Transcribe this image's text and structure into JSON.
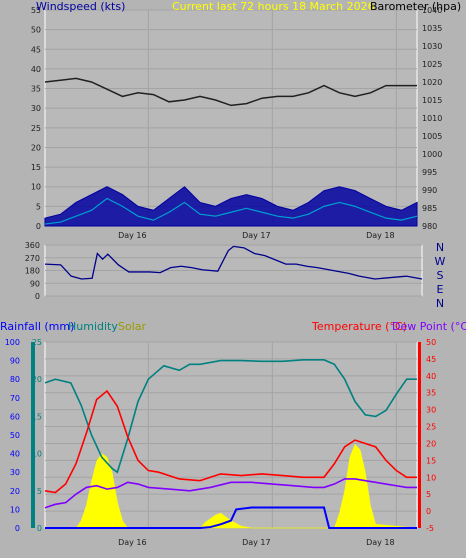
{
  "colors": {
    "bg": "#b4b4b4",
    "plot_bg": "#b9b9b9",
    "grid": "#a4a4a4",
    "frame": "#ffffff",
    "wind_label": "#0000a0",
    "title": "#ffff00",
    "baro_label": "#000000",
    "rain_label": "#0000ff",
    "humidity_label": "#008080",
    "solar_label": "#9a9a00",
    "temp_label": "#ff0000",
    "dew_label": "#8000ff",
    "axis_num": "#202020"
  },
  "chart_data": [
    {
      "id": "wind-barometer",
      "type": "line",
      "title": "Current last 72 hours 18 March 2026",
      "ylabel_left": "Windspeed (kts)",
      "ylabel_right": "Barometer (hpa)",
      "ylim_left": [
        0,
        55
      ],
      "yticks_left": [
        0,
        5,
        10,
        15,
        20,
        25,
        30,
        35,
        40,
        45,
        50,
        55
      ],
      "ylim_right": [
        980,
        1040
      ],
      "yticks_right": [
        980,
        985,
        990,
        995,
        1000,
        1005,
        1010,
        1015,
        1020,
        1025,
        1030,
        1035,
        1040
      ],
      "xlim": [
        0,
        72
      ],
      "xticks": [
        {
          "x": 20,
          "label": "Day 16"
        },
        {
          "x": 44,
          "label": "Day 17"
        },
        {
          "x": 68,
          "label": "Day 18"
        }
      ],
      "grid": true,
      "series": [
        {
          "key": "barometer",
          "axis": "right",
          "color": "#202020",
          "style": "line",
          "x": [
            0,
            3,
            6,
            9,
            12,
            15,
            18,
            21,
            24,
            27,
            30,
            33,
            36,
            39,
            42,
            45,
            48,
            51,
            54,
            57,
            60,
            63,
            66,
            69,
            72
          ],
          "y": [
            1020,
            1020.5,
            1021,
            1020,
            1018,
            1016,
            1017,
            1016.5,
            1014.5,
            1015,
            1016,
            1015,
            1013.5,
            1014,
            1015.5,
            1016,
            1016,
            1017,
            1019,
            1017,
            1016,
            1017,
            1019,
            1019,
            1019
          ]
        },
        {
          "key": "wind_gust",
          "axis": "left",
          "color": "#0000a0",
          "style": "band",
          "x": [
            0,
            3,
            6,
            9,
            12,
            15,
            18,
            21,
            24,
            27,
            30,
            33,
            36,
            39,
            42,
            45,
            48,
            51,
            54,
            57,
            60,
            63,
            66,
            69,
            72
          ],
          "y": [
            2,
            3,
            6,
            8,
            10,
            8,
            5,
            4,
            7,
            10,
            6,
            5,
            7,
            8,
            7,
            5,
            4,
            6,
            9,
            10,
            9,
            7,
            5,
            4,
            6
          ]
        },
        {
          "key": "wind_avg",
          "axis": "left",
          "color": "#00a0d0",
          "style": "line",
          "x": [
            0,
            3,
            6,
            9,
            12,
            15,
            18,
            21,
            24,
            27,
            30,
            33,
            36,
            39,
            42,
            45,
            48,
            51,
            54,
            57,
            60,
            63,
            66,
            69,
            72
          ],
          "y": [
            0.5,
            1,
            2.5,
            4,
            7,
            5,
            2.5,
            1.5,
            3.5,
            6,
            3,
            2.5,
            3.5,
            4.5,
            3.5,
            2.5,
            2,
            3,
            5,
            6,
            5,
            3.5,
            2,
            1.5,
            2.5
          ]
        }
      ]
    },
    {
      "id": "wind-direction",
      "type": "line",
      "yticks": [
        0,
        90,
        180,
        270,
        360
      ],
      "ylim": [
        0,
        360
      ],
      "compass": [
        "N",
        "W",
        "S",
        "E",
        "N"
      ],
      "xlim": [
        0,
        72
      ],
      "grid": true,
      "series": [
        {
          "key": "direction",
          "color": "#00008b",
          "x": [
            0,
            3,
            5,
            7,
            9,
            10,
            11,
            12,
            14,
            16,
            20,
            22,
            24,
            26,
            28,
            30,
            33,
            35,
            36,
            38,
            40,
            42,
            44,
            46,
            48,
            50,
            52,
            55,
            58,
            60,
            63,
            66,
            69,
            72
          ],
          "y": [
            225,
            220,
            140,
            120,
            125,
            300,
            260,
            295,
            220,
            170,
            170,
            165,
            200,
            210,
            200,
            185,
            175,
            320,
            350,
            340,
            300,
            285,
            255,
            225,
            225,
            210,
            200,
            180,
            160,
            140,
            120,
            130,
            140,
            120
          ]
        }
      ]
    },
    {
      "id": "temperature-humidity-rain",
      "type": "line",
      "labels": {
        "rainfall": "Rainfall (mm)",
        "humidity": "Humidity",
        "solar": "Solar",
        "temperature": "Temperature (°C)",
        "dew_point": "Dew Point (°C)"
      },
      "ylim_rainfall": [
        0,
        100
      ],
      "yticks_rainfall": [
        0,
        10,
        20,
        30,
        40,
        50,
        60,
        70,
        80,
        90,
        100
      ],
      "ylim_humidity": [
        0,
        25
      ],
      "yticks_humidity": [
        0,
        5,
        10,
        15,
        20,
        25
      ],
      "ylim_temperature": [
        -5,
        50
      ],
      "yticks_temperature": [
        -5,
        0,
        5,
        10,
        15,
        20,
        25,
        30,
        35,
        40,
        45,
        50
      ],
      "xlim": [
        0,
        72
      ],
      "xticks": [
        {
          "x": 20,
          "label": "Day 16"
        },
        {
          "x": 44,
          "label": "Day 17"
        },
        {
          "x": 68,
          "label": "Day 18"
        }
      ],
      "grid": true,
      "series": [
        {
          "key": "solar",
          "color": "#ffff00",
          "style": "area",
          "scale": "rainfall",
          "x": [
            0,
            6,
            7,
            8,
            9,
            10,
            11,
            12,
            13,
            14,
            15,
            16,
            24,
            30,
            31,
            32,
            33,
            34,
            35,
            36,
            38,
            40,
            46,
            56,
            57,
            58,
            59,
            60,
            61,
            62,
            63,
            64,
            72
          ],
          "y": [
            0,
            0,
            4,
            12,
            25,
            36,
            40,
            38,
            30,
            14,
            4,
            0,
            0,
            0,
            3,
            5,
            7,
            8,
            6,
            4,
            1,
            0,
            0,
            0,
            8,
            20,
            38,
            45,
            42,
            30,
            12,
            2,
            0
          ]
        },
        {
          "key": "rainfall",
          "color": "#0000ff",
          "style": "line",
          "scale": "rainfall",
          "x": [
            0,
            30,
            32,
            34,
            36,
            37,
            40,
            48,
            54,
            55,
            56,
            60,
            72
          ],
          "y": [
            0,
            0,
            0.5,
            2,
            4,
            10,
            11,
            11,
            11,
            0,
            0,
            0,
            0
          ]
        },
        {
          "key": "humidity",
          "color": "#008080",
          "style": "line",
          "scale": "humidity",
          "x": [
            0,
            2,
            5,
            7,
            9,
            11,
            13,
            14,
            16,
            18,
            20,
            23,
            26,
            28,
            30,
            34,
            38,
            42,
            46,
            50,
            54,
            56,
            58,
            60,
            62,
            64,
            66,
            68,
            70,
            72
          ],
          "y": [
            19.5,
            20,
            19.5,
            16.5,
            12.5,
            9.5,
            8,
            7.5,
            12,
            17,
            20,
            21.8,
            21.2,
            22,
            22,
            22.5,
            22.5,
            22.4,
            22.4,
            22.6,
            22.6,
            22,
            20,
            17,
            15.2,
            15,
            15.8,
            18,
            20,
            20
          ]
        },
        {
          "key": "temperature",
          "color": "#ff0000",
          "style": "line",
          "scale": "temperature",
          "x": [
            0,
            2,
            4,
            6,
            8,
            10,
            12,
            14,
            16,
            18,
            20,
            22,
            26,
            30,
            34,
            38,
            42,
            46,
            50,
            54,
            56,
            58,
            60,
            62,
            64,
            66,
            68,
            70,
            72
          ],
          "y": [
            6,
            5.5,
            8,
            14,
            23,
            33,
            35.5,
            31,
            22,
            15,
            12,
            11.5,
            9.5,
            9,
            11,
            10.5,
            11,
            10.5,
            10,
            10,
            14,
            19,
            21,
            20,
            19,
            15,
            12,
            10,
            10
          ]
        },
        {
          "key": "dew_point",
          "color": "#8000ff",
          "style": "line",
          "scale": "temperature",
          "x": [
            0,
            2,
            4,
            6,
            8,
            10,
            12,
            14,
            16,
            18,
            20,
            24,
            28,
            32,
            36,
            40,
            44,
            48,
            52,
            54,
            56,
            58,
            60,
            62,
            64,
            66,
            68,
            70,
            72
          ],
          "y": [
            1,
            2,
            2.5,
            5,
            7,
            7.5,
            6.5,
            7,
            8.5,
            8,
            7,
            6.5,
            6,
            7,
            8.5,
            8.5,
            8,
            7.5,
            7,
            7,
            8,
            9.5,
            9.5,
            9,
            8.5,
            8,
            7.5,
            7,
            7
          ]
        }
      ]
    }
  ]
}
